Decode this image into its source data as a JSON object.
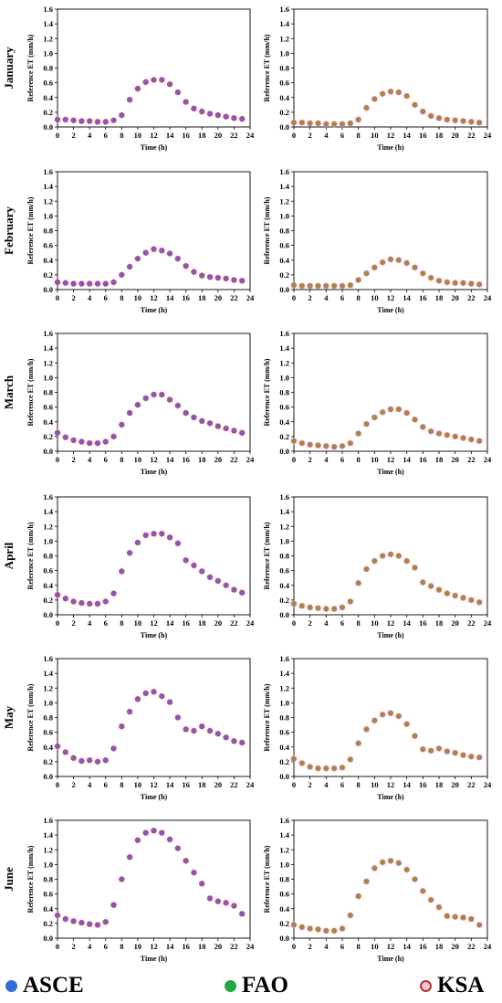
{
  "legend": {
    "items": [
      {
        "label": "ASCE",
        "color": "#2f6fd6",
        "marker": "filled-circle"
      },
      {
        "label": "FAO",
        "color": "#1fa843",
        "marker": "filled-circle"
      },
      {
        "label": "KSA",
        "color": "#b8322d",
        "marker": "open-circle"
      }
    ]
  },
  "colors": {
    "left_fill": "#7a5ad6",
    "left_edge": "#b54a5e",
    "right_fill": "#a3883f",
    "right_edge": "#c97a6a",
    "highlight": "#f2b8cc"
  },
  "chart_data": [
    {
      "type": "scatter",
      "row": "January",
      "col": "left",
      "title": "",
      "xlabel": "Time (h)",
      "ylabel": "Reference ET (mm/h)",
      "xlim": [
        0,
        24
      ],
      "ylim": [
        0,
        1.6
      ],
      "xticks": [
        0,
        2,
        4,
        6,
        8,
        10,
        12,
        14,
        16,
        18,
        20,
        22,
        24
      ],
      "yticks": [
        "0.0",
        "0.2",
        "0.4",
        "0.6",
        "0.8",
        "1.0",
        "1.2",
        "1.4",
        "1.6"
      ],
      "x": [
        0,
        1,
        2,
        3,
        4,
        5,
        6,
        7,
        8,
        9,
        10,
        11,
        12,
        13,
        14,
        15,
        16,
        17,
        18,
        19,
        20,
        21,
        22,
        23
      ],
      "y": [
        0.1,
        0.1,
        0.09,
        0.08,
        0.08,
        0.07,
        0.07,
        0.09,
        0.16,
        0.37,
        0.52,
        0.61,
        0.64,
        0.64,
        0.58,
        0.47,
        0.34,
        0.25,
        0.21,
        0.18,
        0.16,
        0.14,
        0.12,
        0.11
      ]
    },
    {
      "type": "scatter",
      "row": "January",
      "col": "right",
      "title": "",
      "xlabel": "Time (h)",
      "ylabel": "Reference ET (mm/h)",
      "xlim": [
        0,
        24
      ],
      "ylim": [
        0,
        1.6
      ],
      "xticks": [
        0,
        2,
        4,
        6,
        8,
        10,
        12,
        14,
        16,
        18,
        20,
        22,
        24
      ],
      "yticks": [
        "0.0",
        "0.2",
        "0.4",
        "0.6",
        "0.8",
        "1.0",
        "1.2",
        "1.4",
        "1.6"
      ],
      "x": [
        0,
        1,
        2,
        3,
        4,
        5,
        6,
        7,
        8,
        9,
        10,
        11,
        12,
        13,
        14,
        15,
        16,
        17,
        18,
        19,
        20,
        21,
        22,
        23
      ],
      "y": [
        0.06,
        0.06,
        0.05,
        0.05,
        0.04,
        0.04,
        0.04,
        0.05,
        0.1,
        0.26,
        0.38,
        0.45,
        0.48,
        0.47,
        0.42,
        0.3,
        0.21,
        0.15,
        0.12,
        0.1,
        0.09,
        0.08,
        0.07,
        0.06
      ]
    },
    {
      "type": "scatter",
      "row": "February",
      "col": "left",
      "title": "",
      "xlabel": "Time (h)",
      "ylabel": "Reference ET (mm/h)",
      "xlim": [
        0,
        24
      ],
      "ylim": [
        0,
        1.6
      ],
      "xticks": [
        0,
        2,
        4,
        6,
        8,
        10,
        12,
        14,
        16,
        18,
        20,
        22,
        24
      ],
      "yticks": [
        "0.0",
        "0.2",
        "0.4",
        "0.6",
        "0.8",
        "1.0",
        "1.2",
        "1.4",
        "1.6"
      ],
      "x": [
        0,
        1,
        2,
        3,
        4,
        5,
        6,
        7,
        8,
        9,
        10,
        11,
        12,
        13,
        14,
        15,
        16,
        17,
        18,
        19,
        20,
        21,
        22,
        23
      ],
      "y": [
        0.1,
        0.09,
        0.08,
        0.08,
        0.08,
        0.08,
        0.08,
        0.1,
        0.2,
        0.31,
        0.42,
        0.5,
        0.55,
        0.53,
        0.49,
        0.42,
        0.32,
        0.24,
        0.19,
        0.17,
        0.16,
        0.15,
        0.13,
        0.12
      ]
    },
    {
      "type": "scatter",
      "row": "February",
      "col": "right",
      "title": "",
      "xlabel": "Time (h)",
      "ylabel": "Reference ET (mm/h)",
      "xlim": [
        0,
        24
      ],
      "ylim": [
        0,
        1.6
      ],
      "xticks": [
        0,
        2,
        4,
        6,
        8,
        10,
        12,
        14,
        16,
        18,
        20,
        22,
        24
      ],
      "yticks": [
        "0.0",
        "0.2",
        "0.4",
        "0.6",
        "0.8",
        "1.0",
        "1.2",
        "1.4",
        "1.6"
      ],
      "x": [
        0,
        1,
        2,
        3,
        4,
        5,
        6,
        7,
        8,
        9,
        10,
        11,
        12,
        13,
        14,
        15,
        16,
        17,
        18,
        19,
        20,
        21,
        22,
        23
      ],
      "y": [
        0.06,
        0.05,
        0.05,
        0.05,
        0.05,
        0.05,
        0.05,
        0.06,
        0.13,
        0.22,
        0.3,
        0.37,
        0.41,
        0.4,
        0.36,
        0.3,
        0.22,
        0.16,
        0.12,
        0.1,
        0.09,
        0.09,
        0.08,
        0.07
      ]
    },
    {
      "type": "scatter",
      "row": "March",
      "col": "left",
      "title": "",
      "xlabel": "Time (h)",
      "ylabel": "Reference ET (mm/h)",
      "xlim": [
        0,
        24
      ],
      "ylim": [
        0,
        1.6
      ],
      "xticks": [
        0,
        2,
        4,
        6,
        8,
        10,
        12,
        14,
        16,
        18,
        20,
        22,
        24
      ],
      "yticks": [
        "0.0",
        "0.2",
        "0.4",
        "0.6",
        "0.8",
        "1.0",
        "1.2",
        "1.4",
        "1.6"
      ],
      "x": [
        0,
        1,
        2,
        3,
        4,
        5,
        6,
        7,
        8,
        9,
        10,
        11,
        12,
        13,
        14,
        15,
        16,
        17,
        18,
        19,
        20,
        21,
        22,
        23
      ],
      "y": [
        0.25,
        0.19,
        0.15,
        0.13,
        0.11,
        0.11,
        0.13,
        0.2,
        0.36,
        0.52,
        0.63,
        0.72,
        0.77,
        0.77,
        0.7,
        0.62,
        0.52,
        0.46,
        0.41,
        0.38,
        0.34,
        0.31,
        0.28,
        0.25
      ]
    },
    {
      "type": "scatter",
      "row": "March",
      "col": "right",
      "title": "",
      "xlabel": "Time (h)",
      "ylabel": "Reference ET (mm/h)",
      "xlim": [
        0,
        24
      ],
      "ylim": [
        0,
        1.6
      ],
      "xticks": [
        0,
        2,
        4,
        6,
        8,
        10,
        12,
        14,
        16,
        18,
        20,
        22,
        24
      ],
      "yticks": [
        "0.0",
        "0.2",
        "0.4",
        "0.6",
        "0.8",
        "1.0",
        "1.2",
        "1.4",
        "1.6"
      ],
      "x": [
        0,
        1,
        2,
        3,
        4,
        5,
        6,
        7,
        8,
        9,
        10,
        11,
        12,
        13,
        14,
        15,
        16,
        17,
        18,
        19,
        20,
        21,
        22,
        23
      ],
      "y": [
        0.14,
        0.11,
        0.09,
        0.08,
        0.07,
        0.06,
        0.07,
        0.11,
        0.24,
        0.37,
        0.46,
        0.53,
        0.57,
        0.57,
        0.52,
        0.43,
        0.33,
        0.27,
        0.24,
        0.22,
        0.2,
        0.18,
        0.16,
        0.14
      ]
    },
    {
      "type": "scatter",
      "row": "April",
      "col": "left",
      "title": "",
      "xlabel": "Time (h)",
      "ylabel": "Reference ET (mm/h)",
      "xlim": [
        0,
        24
      ],
      "ylim": [
        0,
        1.6
      ],
      "xticks": [
        0,
        2,
        4,
        6,
        8,
        10,
        12,
        14,
        16,
        18,
        20,
        22,
        24
      ],
      "yticks": [
        "0.0",
        "0.2",
        "0.4",
        "0.6",
        "0.8",
        "1.0",
        "1.2",
        "1.4",
        "1.6"
      ],
      "x": [
        0,
        1,
        2,
        3,
        4,
        5,
        6,
        7,
        8,
        9,
        10,
        11,
        12,
        13,
        14,
        15,
        16,
        17,
        18,
        19,
        20,
        21,
        22,
        23
      ],
      "y": [
        0.27,
        0.22,
        0.18,
        0.16,
        0.15,
        0.15,
        0.18,
        0.29,
        0.59,
        0.84,
        0.98,
        1.08,
        1.1,
        1.1,
        1.05,
        0.97,
        0.74,
        0.67,
        0.59,
        0.51,
        0.46,
        0.4,
        0.34,
        0.3
      ]
    },
    {
      "type": "scatter",
      "row": "April",
      "col": "right",
      "title": "",
      "xlabel": "Time (h)",
      "ylabel": "Reference ET (mm/h)",
      "xlim": [
        0,
        24
      ],
      "ylim": [
        0,
        1.6
      ],
      "xticks": [
        0,
        2,
        4,
        6,
        8,
        10,
        12,
        14,
        16,
        18,
        20,
        22,
        24
      ],
      "yticks": [
        "0.0",
        "0.2",
        "0.4",
        "0.6",
        "0.8",
        "1.0",
        "1.2",
        "1.4",
        "1.6"
      ],
      "x": [
        0,
        1,
        2,
        3,
        4,
        5,
        6,
        7,
        8,
        9,
        10,
        11,
        12,
        13,
        14,
        15,
        16,
        17,
        18,
        19,
        20,
        21,
        22,
        23
      ],
      "y": [
        0.15,
        0.12,
        0.1,
        0.09,
        0.08,
        0.08,
        0.1,
        0.18,
        0.43,
        0.62,
        0.73,
        0.8,
        0.82,
        0.8,
        0.73,
        0.64,
        0.44,
        0.39,
        0.34,
        0.29,
        0.26,
        0.23,
        0.2,
        0.17
      ]
    },
    {
      "type": "scatter",
      "row": "May",
      "col": "left",
      "title": "",
      "xlabel": "Time (h)",
      "ylabel": "Reference ET (mm/h)",
      "xlim": [
        0,
        24
      ],
      "ylim": [
        0,
        1.6
      ],
      "xticks": [
        0,
        2,
        4,
        6,
        8,
        10,
        12,
        14,
        16,
        18,
        20,
        22,
        24
      ],
      "yticks": [
        "0.0",
        "0.2",
        "0.4",
        "0.6",
        "0.8",
        "1.0",
        "1.2",
        "1.4",
        "1.6"
      ],
      "x": [
        0,
        1,
        2,
        3,
        4,
        5,
        6,
        7,
        8,
        9,
        10,
        11,
        12,
        13,
        14,
        15,
        16,
        17,
        18,
        19,
        20,
        21,
        22,
        23
      ],
      "y": [
        0.41,
        0.33,
        0.25,
        0.21,
        0.22,
        0.2,
        0.22,
        0.38,
        0.68,
        0.88,
        1.05,
        1.13,
        1.15,
        1.09,
        1.01,
        0.8,
        0.64,
        0.62,
        0.68,
        0.62,
        0.58,
        0.53,
        0.48,
        0.46
      ]
    },
    {
      "type": "scatter",
      "row": "May",
      "col": "right",
      "title": "",
      "xlabel": "Time (h)",
      "ylabel": "Reference ET (mm/h)",
      "xlim": [
        0,
        24
      ],
      "ylim": [
        0,
        1.6
      ],
      "xticks": [
        0,
        2,
        4,
        6,
        8,
        10,
        12,
        14,
        16,
        18,
        20,
        22,
        24
      ],
      "yticks": [
        "0.0",
        "0.2",
        "0.4",
        "0.6",
        "0.8",
        "1.0",
        "1.2",
        "1.4",
        "1.6"
      ],
      "x": [
        0,
        1,
        2,
        3,
        4,
        5,
        6,
        7,
        8,
        9,
        10,
        11,
        12,
        13,
        14,
        15,
        16,
        17,
        18,
        19,
        20,
        21,
        22,
        23
      ],
      "y": [
        0.24,
        0.18,
        0.13,
        0.11,
        0.11,
        0.11,
        0.12,
        0.23,
        0.45,
        0.64,
        0.76,
        0.84,
        0.86,
        0.82,
        0.71,
        0.55,
        0.37,
        0.35,
        0.38,
        0.34,
        0.32,
        0.29,
        0.27,
        0.26
      ]
    },
    {
      "type": "scatter",
      "row": "June",
      "col": "left",
      "title": "",
      "xlabel": "Time (h)",
      "ylabel": "Reference ET (mm/h)",
      "xlim": [
        0,
        24
      ],
      "ylim": [
        0,
        1.6
      ],
      "xticks": [
        0,
        2,
        4,
        6,
        8,
        10,
        12,
        14,
        16,
        18,
        20,
        22,
        24
      ],
      "yticks": [
        "0.0",
        "0.2",
        "0.4",
        "0.6",
        "0.8",
        "1.0",
        "1.2",
        "1.4",
        "1.6"
      ],
      "x": [
        0,
        1,
        2,
        3,
        4,
        5,
        6,
        7,
        8,
        9,
        10,
        11,
        12,
        13,
        14,
        15,
        16,
        17,
        18,
        19,
        20,
        21,
        22,
        23
      ],
      "y": [
        0.31,
        0.26,
        0.23,
        0.21,
        0.19,
        0.18,
        0.22,
        0.45,
        0.8,
        1.1,
        1.33,
        1.43,
        1.46,
        1.43,
        1.34,
        1.22,
        1.05,
        0.89,
        0.74,
        0.54,
        0.5,
        0.48,
        0.44,
        0.33
      ]
    },
    {
      "type": "scatter",
      "row": "June",
      "col": "right",
      "title": "",
      "xlabel": "Time (h)",
      "ylabel": "Reference ET (mm/h)",
      "xlim": [
        0,
        24
      ],
      "ylim": [
        0,
        1.6
      ],
      "xticks": [
        0,
        2,
        4,
        6,
        8,
        10,
        12,
        14,
        16,
        18,
        20,
        22,
        24
      ],
      "yticks": [
        "0.0",
        "0.2",
        "0.4",
        "0.6",
        "0.8",
        "1.0",
        "1.2",
        "1.4",
        "1.6"
      ],
      "x": [
        0,
        1,
        2,
        3,
        4,
        5,
        6,
        7,
        8,
        9,
        10,
        11,
        12,
        13,
        14,
        15,
        16,
        17,
        18,
        19,
        20,
        21,
        22,
        23
      ],
      "y": [
        0.18,
        0.15,
        0.13,
        0.12,
        0.1,
        0.1,
        0.13,
        0.31,
        0.57,
        0.77,
        0.95,
        1.03,
        1.05,
        1.02,
        0.93,
        0.8,
        0.64,
        0.52,
        0.42,
        0.3,
        0.29,
        0.28,
        0.26,
        0.18
      ]
    }
  ]
}
